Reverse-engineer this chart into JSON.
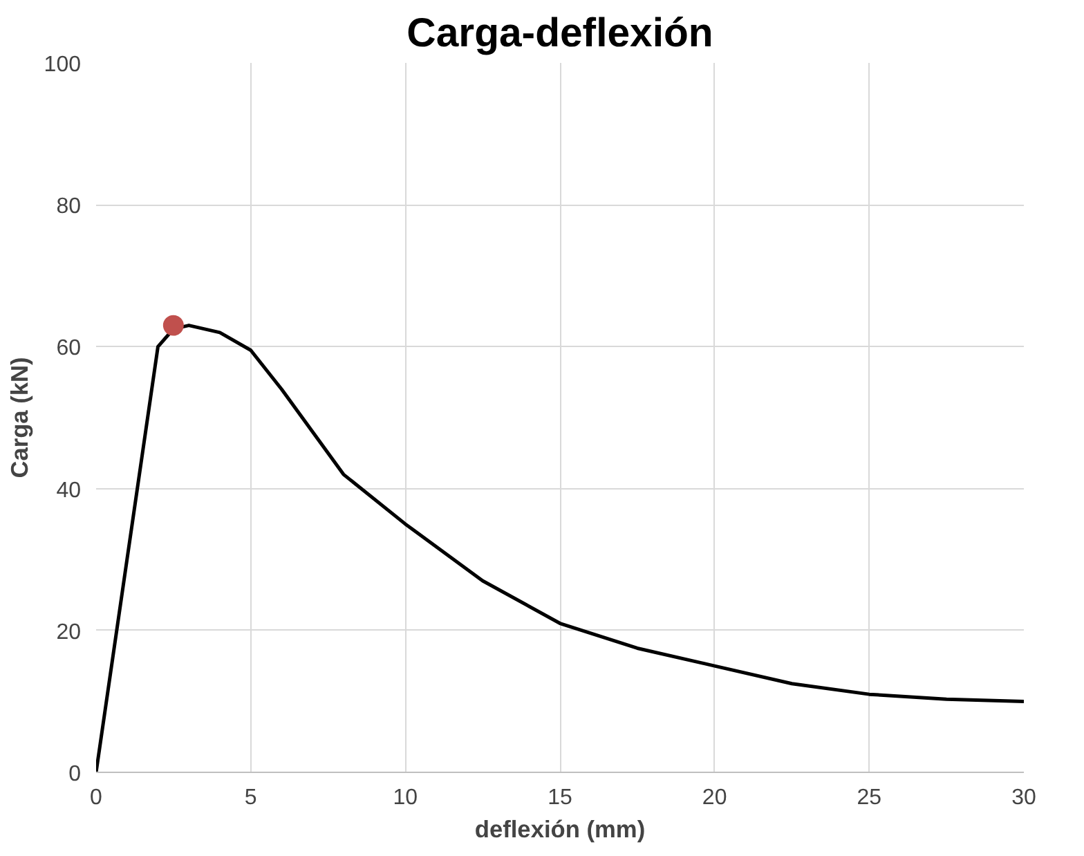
{
  "chart_data": {
    "type": "line",
    "title": "Carga-deflexión",
    "xlabel": "deflexión (mm)",
    "ylabel": "Carga (kN)",
    "xlim": [
      0,
      30
    ],
    "xticks": [
      0,
      5,
      10,
      15,
      20,
      25,
      30
    ],
    "ylim": [
      0,
      100
    ],
    "yticks": [
      0,
      20,
      40,
      60,
      80,
      100
    ],
    "grid": true,
    "series": [
      {
        "color": "#000000",
        "x": [
          0,
          1,
          2,
          2.5,
          3,
          4,
          5,
          6,
          7,
          8,
          10,
          12.5,
          15,
          17.5,
          20,
          22.5,
          25,
          27.5,
          30
        ],
        "values": [
          0,
          30,
          60,
          62.5,
          63,
          62,
          59.5,
          54,
          48,
          42,
          35,
          27,
          21,
          17.5,
          15,
          12.5,
          11,
          10.3,
          10
        ]
      },
      {
        "type": "scatter",
        "color": "#c0504d",
        "marker": "circle",
        "x": [
          2.5
        ],
        "values": [
          63
        ]
      }
    ]
  }
}
